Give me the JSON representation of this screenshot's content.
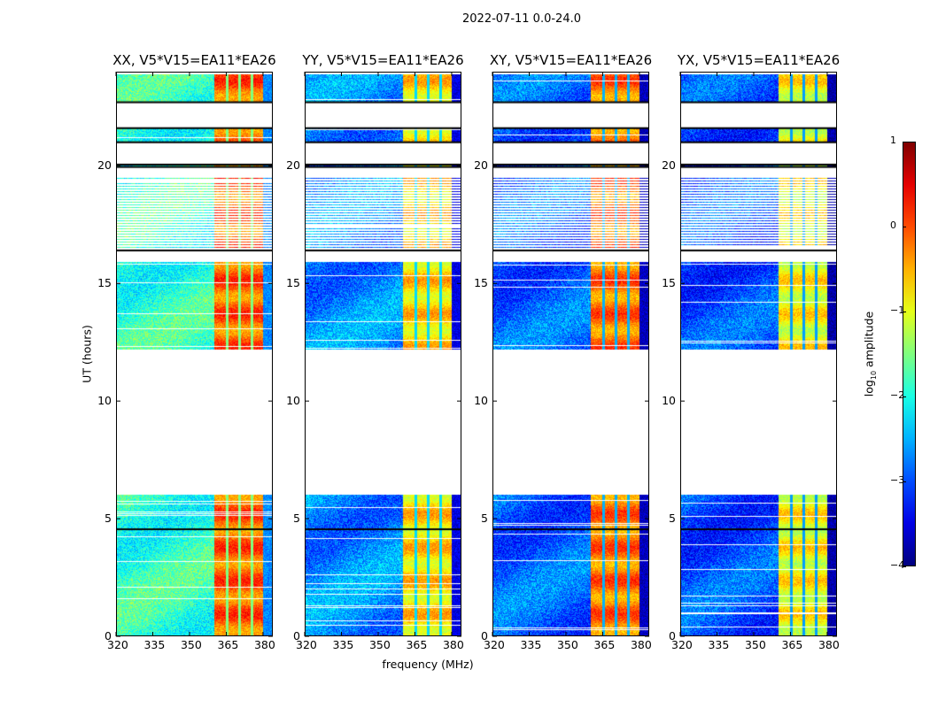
{
  "chart_data": {
    "type": "heatmap",
    "title": "2022-07-11 0.0-24.0",
    "xlabel": "frequency (MHz)",
    "ylabel": "UT (hours)",
    "xlim": [
      320,
      384
    ],
    "ylim": [
      0,
      24
    ],
    "xticks": [
      "320",
      "335",
      "350",
      "365",
      "380"
    ],
    "yticks": [
      "0",
      "5",
      "10",
      "15",
      "20"
    ],
    "colorbar": {
      "label_main": "log",
      "label_sub": "10",
      "label_rest": " amplitude",
      "range": [
        -4,
        1
      ],
      "ticks": [
        "1",
        "0",
        "−1",
        "−2",
        "−3",
        "−4"
      ],
      "colormap": "jet"
    },
    "data_segments_hours": [
      [
        0,
        4.5
      ],
      [
        4.6,
        6.0
      ],
      [
        12.2,
        15.9
      ],
      [
        16.5,
        19.5
      ],
      [
        19.95,
        20.05
      ],
      [
        21.0,
        21.6
      ],
      [
        22.7,
        23.9
      ]
    ],
    "sparse_segment_hours": [
      16.5,
      19.5
    ],
    "flag_lines_hours": [
      4.55,
      16.4,
      19.95,
      20.05,
      21.0,
      21.6,
      22.7
    ],
    "bright_band_mhz": [
      360,
      380
    ],
    "band_gaps_mhz": [
      365.5,
      370.5,
      375.5
    ],
    "panels": [
      {
        "title": "XX, V5*V15=EA11*EA26",
        "background_level": -1.9,
        "band_level": -0.1
      },
      {
        "title": "YY, V5*V15=EA11*EA26",
        "background_level": -2.7,
        "band_level": -0.7
      },
      {
        "title": "XY, V5*V15=EA11*EA26",
        "background_level": -2.9,
        "band_level": -0.2
      },
      {
        "title": "YX, V5*V15=EA11*EA26",
        "background_level": -3.0,
        "band_level": -0.9
      }
    ]
  }
}
